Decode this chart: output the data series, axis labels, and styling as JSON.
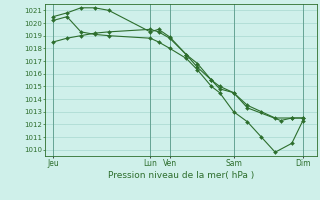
{
  "xlabel": "Pression niveau de la mer( hPa )",
  "bg_color": "#cff0ea",
  "grid_color": "#a8d8d0",
  "line_color": "#2d6e2d",
  "ylim": [
    1009.5,
    1021.5
  ],
  "yticks": [
    1010,
    1011,
    1012,
    1013,
    1014,
    1015,
    1016,
    1017,
    1018,
    1019,
    1020,
    1021
  ],
  "xtick_labels": [
    "Jeu",
    "Lun",
    "Ven",
    "Sam",
    "Dim"
  ],
  "xtick_positions": [
    0.0,
    3.5,
    4.2,
    6.5,
    9.0
  ],
  "xlim": [
    -0.3,
    9.5
  ],
  "line1_x": [
    0.0,
    0.5,
    1.0,
    1.5,
    2.0,
    3.5,
    3.8,
    4.2,
    4.8,
    5.2,
    5.7,
    6.0,
    6.5,
    7.0,
    8.2,
    8.6,
    9.0
  ],
  "line1_y": [
    1020.5,
    1020.8,
    1021.2,
    1021.2,
    1021.0,
    1019.3,
    1019.5,
    1018.9,
    1017.5,
    1016.8,
    1015.5,
    1014.8,
    1014.5,
    1013.3,
    1012.3,
    1012.5,
    1012.5
  ],
  "line2_x": [
    0.0,
    0.5,
    1.0,
    1.5,
    2.0,
    3.5,
    3.8,
    4.2,
    4.8,
    5.2,
    5.7,
    6.0,
    6.5,
    7.0,
    7.5,
    8.0,
    8.6,
    9.0
  ],
  "line2_y": [
    1020.2,
    1020.5,
    1019.3,
    1019.1,
    1019.0,
    1018.8,
    1018.5,
    1018.0,
    1017.2,
    1016.3,
    1015.0,
    1014.5,
    1013.0,
    1012.2,
    1011.0,
    1009.8,
    1010.5,
    1012.3
  ],
  "line3_x": [
    0.0,
    0.5,
    1.0,
    1.5,
    2.0,
    3.5,
    3.8,
    4.2,
    4.8,
    5.2,
    5.7,
    6.0,
    6.5,
    7.0,
    7.5,
    8.0,
    8.6,
    9.0
  ],
  "line3_y": [
    1018.5,
    1018.8,
    1019.0,
    1019.2,
    1019.3,
    1019.5,
    1019.3,
    1018.8,
    1017.5,
    1016.5,
    1015.5,
    1015.0,
    1014.5,
    1013.5,
    1013.0,
    1012.5,
    1012.5,
    1012.5
  ],
  "vlines": [
    0.0,
    3.5,
    4.2,
    6.5,
    9.0
  ]
}
